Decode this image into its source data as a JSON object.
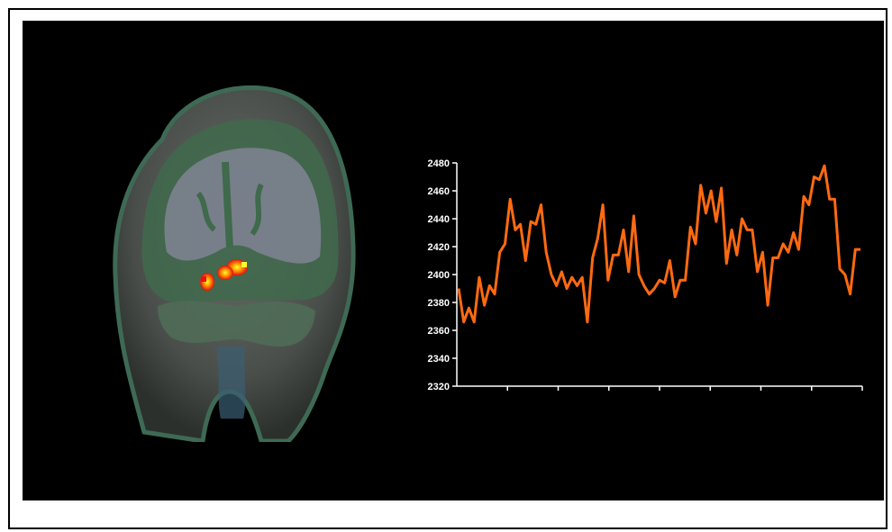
{
  "colors": {
    "background": "#000000",
    "line": "#ff6a10",
    "axis": "#ffffff",
    "blob_core": "#ffff33",
    "blob_mid": "#ff8800",
    "blob_outer": "#ee1111"
  },
  "brain_image": {
    "icon": "coronal-mri-slice-with-activation"
  },
  "chart_data": {
    "type": "line",
    "title": "",
    "xlabel": "",
    "ylabel": "",
    "ylim": [
      2320,
      2480
    ],
    "yticks": [
      2320,
      2340,
      2360,
      2380,
      2400,
      2420,
      2440,
      2460,
      2480
    ],
    "x_major_tick_count": 8,
    "grid": false,
    "legend": "none",
    "series": [
      {
        "color": "#ff6a10",
        "values": [
          2390,
          2366,
          2376,
          2366,
          2398,
          2378,
          2392,
          2386,
          2416,
          2422,
          2454,
          2432,
          2436,
          2410,
          2438,
          2436,
          2450,
          2416,
          2400,
          2392,
          2402,
          2390,
          2398,
          2392,
          2398,
          2366,
          2412,
          2426,
          2450,
          2396,
          2414,
          2414,
          2432,
          2402,
          2442,
          2400,
          2392,
          2386,
          2390,
          2396,
          2394,
          2410,
          2384,
          2396,
          2396,
          2434,
          2422,
          2464,
          2444,
          2460,
          2438,
          2462,
          2408,
          2432,
          2414,
          2440,
          2432,
          2432,
          2402,
          2416,
          2378,
          2412,
          2412,
          2422,
          2416,
          2430,
          2418,
          2456,
          2450,
          2470,
          2468,
          2478,
          2454,
          2454,
          2404,
          2400,
          2386,
          2418,
          2418
        ]
      }
    ]
  }
}
